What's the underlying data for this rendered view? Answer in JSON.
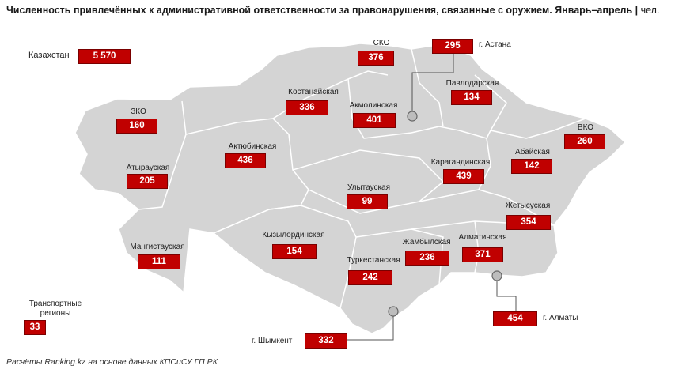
{
  "title": "Численность привлечённых к административной ответственности за правонарушения, связанные с оружием. Январь–апрель",
  "unit": "чел.",
  "footer": "Расчёты Ranking.kz на основе данных КПСиСУ ГП РК",
  "colors": {
    "value_box": "#c00000",
    "map_fill": "#d4d4d4",
    "map_border": "#ffffff"
  },
  "total": {
    "label": "Казахстан",
    "value": "5 570"
  },
  "regions": {
    "sko": {
      "label": "СКО",
      "value": "376"
    },
    "astana": {
      "label": "г. Астана",
      "value": "295"
    },
    "pavlodar": {
      "label": "Павлодарская",
      "value": "134"
    },
    "kostanay": {
      "label": "Костанайская",
      "value": "336"
    },
    "akmola": {
      "label": "Акмолинская",
      "value": "401"
    },
    "zko": {
      "label": "ЗКО",
      "value": "160"
    },
    "vko": {
      "label": "ВКО",
      "value": "260"
    },
    "aktobe": {
      "label": "Актюбинская",
      "value": "436"
    },
    "abay": {
      "label": "Абайская",
      "value": "142"
    },
    "karaganda": {
      "label": "Карагандинская",
      "value": "439"
    },
    "atyrau": {
      "label": "Атырауская",
      "value": "205"
    },
    "ulytau": {
      "label": "Улытауская",
      "value": "99"
    },
    "zhetysu": {
      "label": "Жетысуская",
      "value": "354"
    },
    "mangystau": {
      "label": "Мангистауская",
      "value": "111"
    },
    "kyzylorda": {
      "label": "Кызылординская",
      "value": "154"
    },
    "zhambyl": {
      "label": "Жамбылская",
      "value": "236"
    },
    "almaty_obl": {
      "label": "Алматинская",
      "value": "371"
    },
    "turkestan": {
      "label": "Туркестанская",
      "value": "242"
    },
    "almaty_city": {
      "label": "г. Алматы",
      "value": "454"
    },
    "shymkent": {
      "label": "г. Шымкент",
      "value": "332"
    },
    "transport": {
      "label": "Транспортные регионы",
      "value": "33"
    }
  }
}
